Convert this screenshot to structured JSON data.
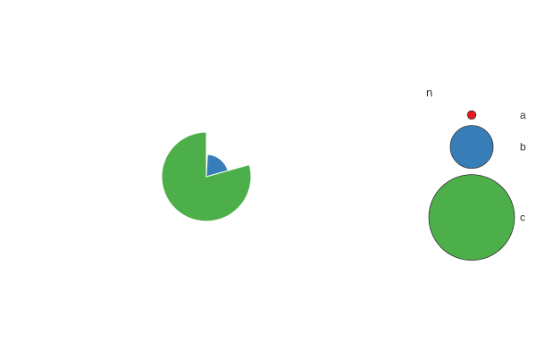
{
  "chart_data": {
    "type": "pie",
    "title": "",
    "categories": [
      "a",
      "b",
      "c"
    ],
    "values": [
      1,
      25,
      100
    ],
    "radius_encodes_value": true,
    "colors": [
      "#e41a1c",
      "#377eb8",
      "#4daf4a"
    ],
    "legend": {
      "title": "n",
      "entries": [
        "a",
        "b",
        "c"
      ],
      "placement": "right"
    }
  }
}
